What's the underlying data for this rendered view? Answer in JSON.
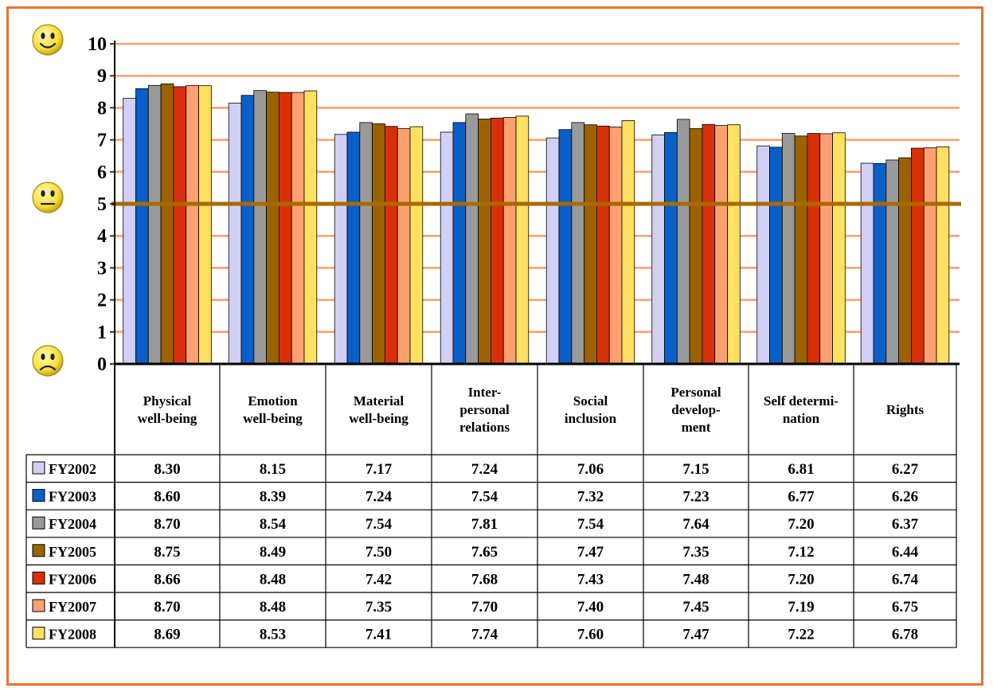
{
  "chart_data": {
    "type": "bar",
    "title": "",
    "xlabel": "",
    "ylabel": "",
    "ylim": [
      0,
      10
    ],
    "yticks": [
      "0",
      "1",
      "2",
      "3",
      "4",
      "5",
      "6",
      "7",
      "8",
      "9",
      "10"
    ],
    "reference_line": 5,
    "grid": true,
    "legend": "table-left",
    "categories": [
      [
        "Physical",
        "well-being"
      ],
      [
        "Emotion",
        "well-being"
      ],
      [
        "Material",
        "well-being"
      ],
      [
        "Inter-",
        "personal",
        "relations"
      ],
      [
        "Social",
        "inclusion"
      ],
      [
        "Personal",
        "develop-",
        "ment"
      ],
      [
        "Self determi-",
        "nation"
      ],
      [
        "Rights"
      ]
    ],
    "series": [
      {
        "name": "FY2002",
        "color": "#d0d0f4",
        "values": [
          8.3,
          8.15,
          7.17,
          7.24,
          7.06,
          7.15,
          6.81,
          6.27
        ],
        "labels": [
          "8.30",
          "8.15",
          "7.17",
          "7.24",
          "7.06",
          "7.15",
          "6.81",
          "6.27"
        ]
      },
      {
        "name": "FY2003",
        "color": "#0a5fc8",
        "values": [
          8.6,
          8.39,
          7.24,
          7.54,
          7.32,
          7.23,
          6.77,
          6.26
        ],
        "labels": [
          "8.60",
          "8.39",
          "7.24",
          "7.54",
          "7.32",
          "7.23",
          "6.77",
          "6.26"
        ]
      },
      {
        "name": "FY2004",
        "color": "#9a9a9a",
        "values": [
          8.7,
          8.54,
          7.54,
          7.81,
          7.54,
          7.64,
          7.2,
          6.37
        ],
        "labels": [
          "8.70",
          "8.54",
          "7.54",
          "7.81",
          "7.54",
          "7.64",
          "7.20",
          "6.37"
        ]
      },
      {
        "name": "FY2005",
        "color": "#9c6200",
        "values": [
          8.75,
          8.49,
          7.5,
          7.65,
          7.47,
          7.35,
          7.12,
          6.44
        ],
        "labels": [
          "8.75",
          "8.49",
          "7.50",
          "7.65",
          "7.47",
          "7.35",
          "7.12",
          "6.44"
        ]
      },
      {
        "name": "FY2006",
        "color": "#d8300a",
        "values": [
          8.66,
          8.48,
          7.42,
          7.68,
          7.43,
          7.48,
          7.2,
          6.74
        ],
        "labels": [
          "8.66",
          "8.48",
          "7.42",
          "7.68",
          "7.43",
          "7.48",
          "7.20",
          "6.74"
        ]
      },
      {
        "name": "FY2007",
        "color": "#ffa070",
        "values": [
          8.7,
          8.48,
          7.35,
          7.7,
          7.4,
          7.45,
          7.19,
          6.75
        ],
        "labels": [
          "8.70",
          "8.48",
          "7.35",
          "7.70",
          "7.40",
          "7.45",
          "7.19",
          "6.75"
        ]
      },
      {
        "name": "FY2008",
        "color": "#ffe060",
        "values": [
          8.69,
          8.53,
          7.41,
          7.74,
          7.6,
          7.47,
          7.22,
          6.78
        ],
        "labels": [
          "8.69",
          "8.53",
          "7.41",
          "7.74",
          "7.60",
          "7.47",
          "7.22",
          "6.78"
        ]
      }
    ],
    "colors": {
      "gridline": "#f2a070",
      "reference": "#a86a00",
      "frame": "#e8732a",
      "face": "#f6df3c"
    },
    "icons": [
      "smiley-happy-icon",
      "smiley-neutral-icon",
      "smiley-sad-icon"
    ]
  }
}
